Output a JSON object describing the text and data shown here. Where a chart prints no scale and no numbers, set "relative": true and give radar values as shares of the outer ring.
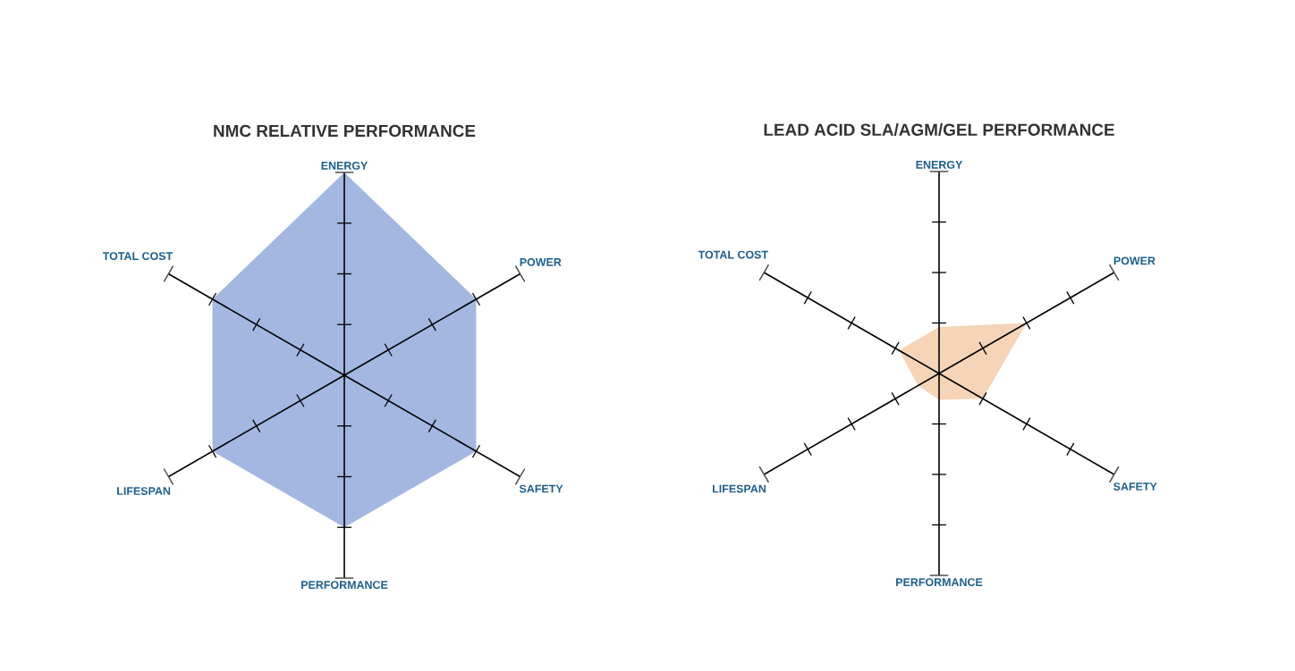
{
  "chart_data": [
    {
      "type": "radar",
      "title": "NMC RELATIVE PERFORMANCE",
      "relative": true,
      "categories": [
        "ENERGY",
        "POWER",
        "SAFETY",
        "PERFORMANCE",
        "LIFESPAN",
        "TOTAL COST"
      ],
      "series": [
        {
          "color": "#a3b7e1",
          "values": [
            1.0,
            0.75,
            0.75,
            0.75,
            0.75,
            0.75
          ]
        }
      ]
    },
    {
      "type": "radar",
      "title": "LEAD ACID SLA/AGM/GEL PERFORMANCE",
      "relative": true,
      "categories": [
        "ENERGY",
        "POWER",
        "SAFETY",
        "PERFORMANCE",
        "LIFESPAN",
        "TOTAL COST"
      ],
      "series": [
        {
          "color": "#f6d4b8",
          "values": [
            0.23,
            0.5,
            0.25,
            0.13,
            0.12,
            0.23
          ]
        }
      ]
    }
  ]
}
